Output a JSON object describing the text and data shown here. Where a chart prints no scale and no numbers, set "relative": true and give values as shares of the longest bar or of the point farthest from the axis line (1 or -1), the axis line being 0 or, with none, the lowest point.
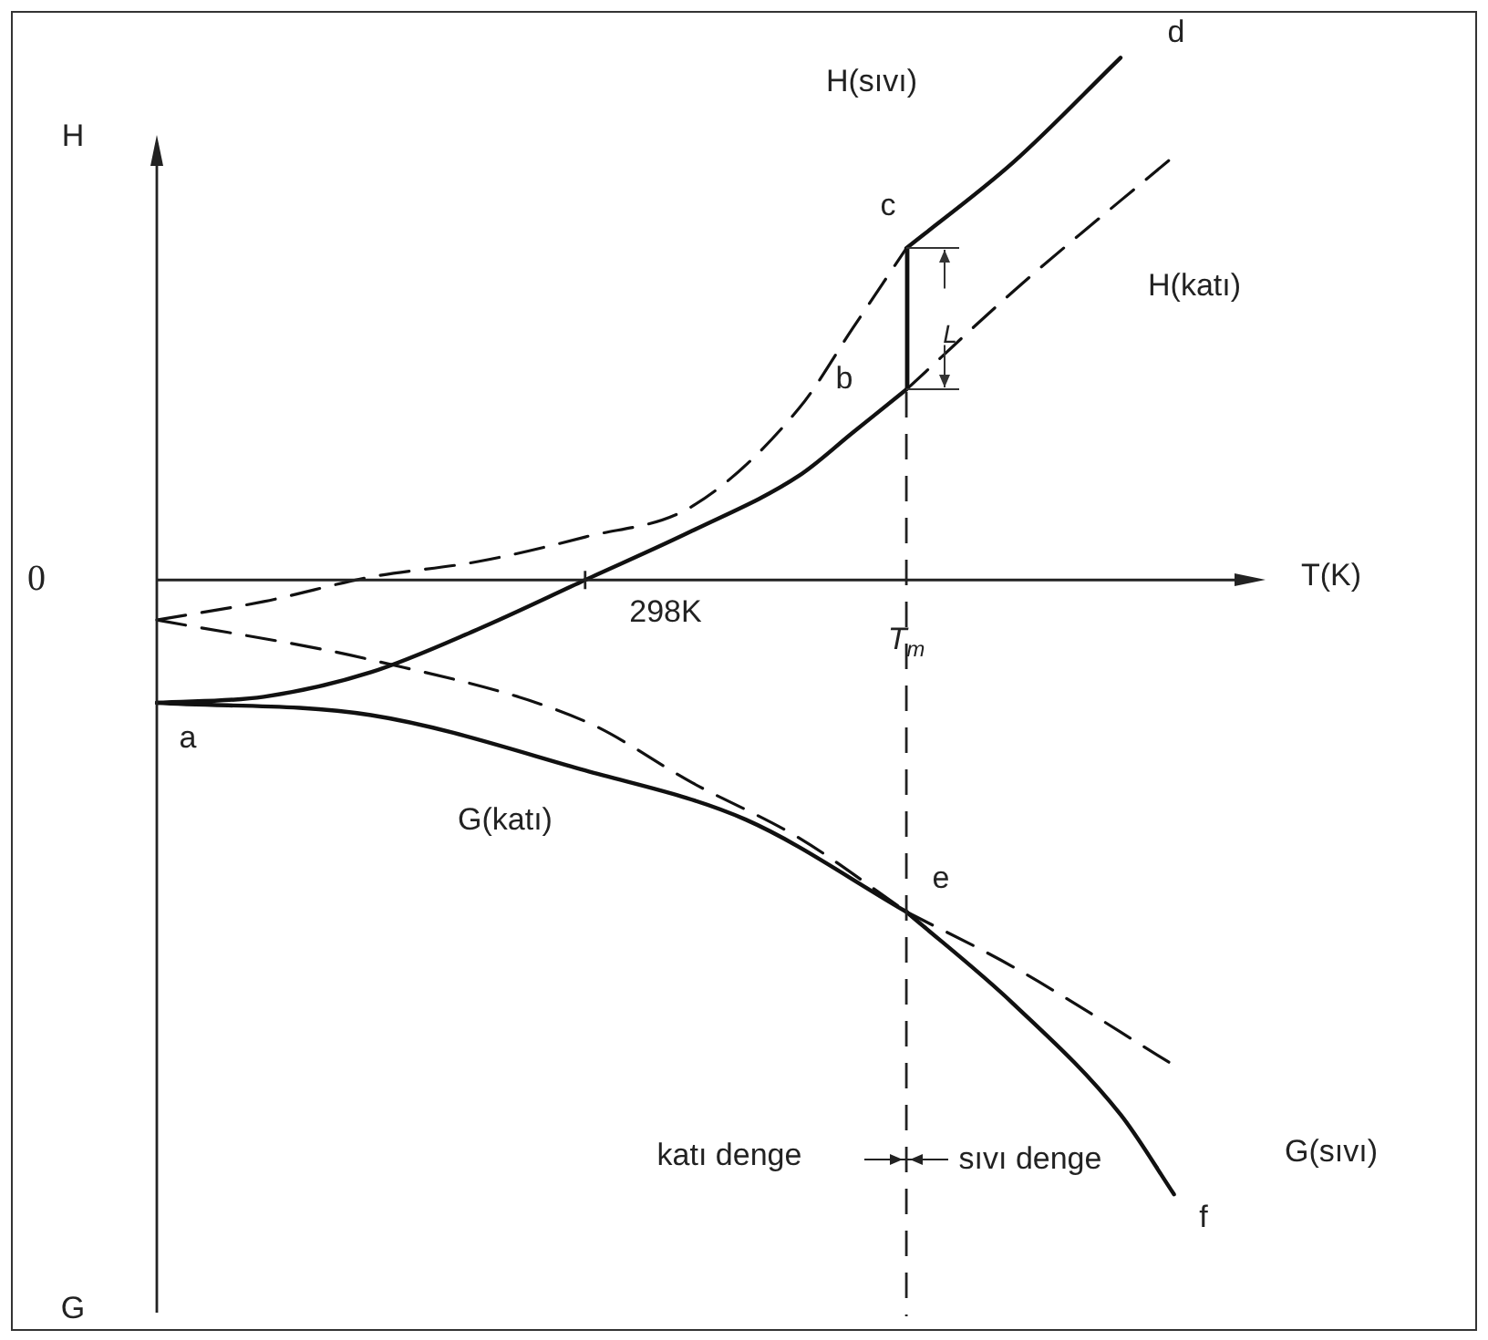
{
  "chart_data": {
    "type": "line",
    "relative": true,
    "xlabel": "T(K)",
    "ylabel": "H",
    "legend": false,
    "marker": "none",
    "categories": [
      null,
      null,
      null,
      null,
      null,
      null,
      null,
      null,
      null,
      null,
      null,
      null,
      null,
      null,
      null,
      null,
      null,
      null,
      null,
      null
    ],
    "series": [
      {
        "color": "#111111",
        "line_style": "solid",
        "values": [
          -0.2,
          null,
          -0.19,
          null,
          -0.15,
          null,
          -0.08,
          null,
          0,
          null,
          0.08,
          null,
          0.17,
          0.24,
          0.31,
          null,
          null,
          null,
          null,
          null
        ]
      },
      {
        "color": "#111111",
        "line_style": "dashed",
        "values": [
          null,
          null,
          null,
          null,
          null,
          null,
          null,
          null,
          null,
          null,
          null,
          null,
          null,
          null,
          0.31,
          null,
          0.47,
          null,
          null,
          0.69
        ]
      },
      {
        "color": "#111111",
        "line_style": "dashed",
        "values": [
          -0.065,
          null,
          -0.035,
          null,
          0.005,
          null,
          0.03,
          null,
          0.07,
          null,
          0.12,
          null,
          0.28,
          0.41,
          0.54,
          null,
          null,
          null,
          null,
          null
        ]
      },
      {
        "color": "#111111",
        "line_style": "solid",
        "values": [
          null,
          null,
          null,
          null,
          null,
          null,
          null,
          null,
          null,
          null,
          null,
          null,
          null,
          null,
          0.54,
          null,
          0.68,
          null,
          0.85,
          null
        ]
      },
      {
        "color": "#111111",
        "line_style": "solid",
        "values": [
          -0.2,
          null,
          null,
          null,
          -0.22,
          null,
          null,
          null,
          -0.31,
          null,
          null,
          -0.39,
          null,
          null,
          -0.54,
          null,
          null,
          null,
          null,
          null
        ]
      },
      {
        "color": "#111111",
        "line_style": "dashed",
        "values": [
          null,
          null,
          null,
          null,
          null,
          null,
          null,
          null,
          null,
          null,
          null,
          null,
          null,
          null,
          -0.54,
          null,
          -0.63,
          null,
          null,
          -0.79
        ]
      },
      {
        "color": "#111111",
        "line_style": "dashed",
        "values": [
          -0.065,
          null,
          null,
          null,
          -0.13,
          null,
          null,
          null,
          -0.23,
          null,
          -0.33,
          null,
          -0.42,
          null,
          -0.54,
          null,
          null,
          null,
          null,
          null
        ]
      },
      {
        "color": "#111111",
        "line_style": "solid",
        "values": [
          null,
          null,
          null,
          null,
          null,
          null,
          null,
          null,
          null,
          null,
          null,
          null,
          null,
          null,
          -0.54,
          null,
          -0.69,
          null,
          -0.87,
          -1
        ]
      }
    ],
    "annotations": [
      "0",
      "G",
      "298K",
      "a",
      "b",
      "c",
      "d",
      "e",
      "f",
      "H(sıvı)",
      "H(katı)",
      "G(katı)",
      "G(sıvı)",
      "katı denge",
      "sıvı denge",
      "L",
      "T$_{m}$"
    ]
  }
}
